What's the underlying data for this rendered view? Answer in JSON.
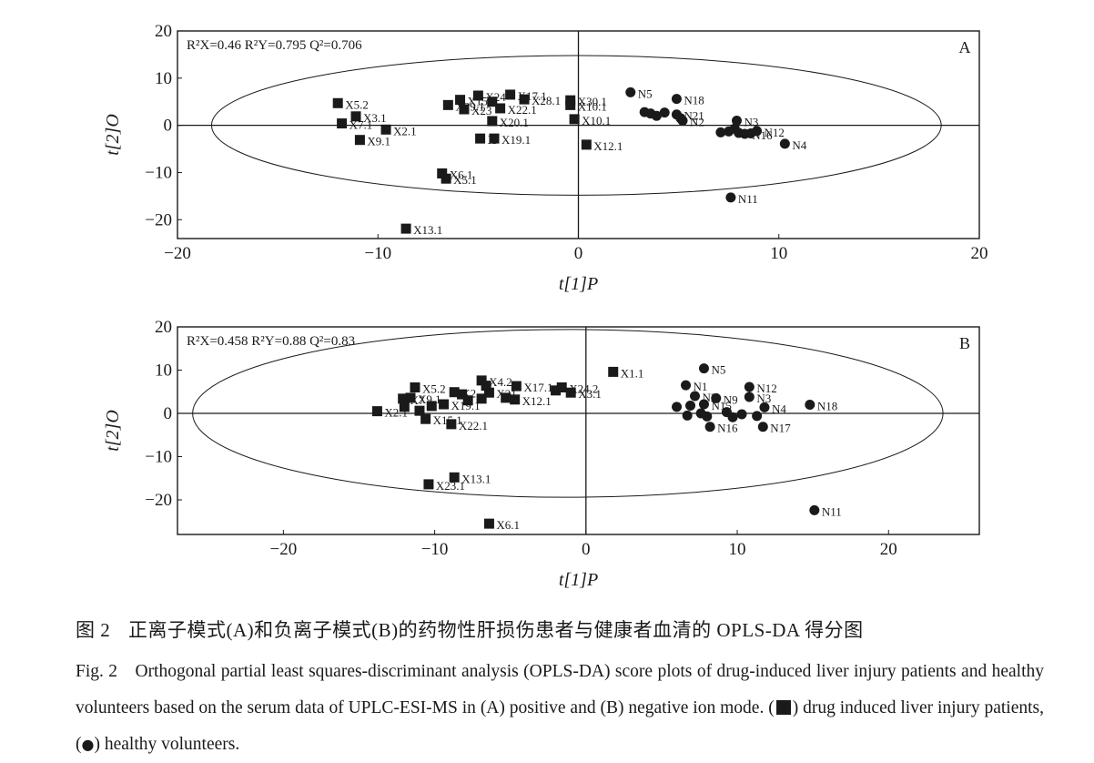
{
  "chart_data": [
    {
      "type": "scatter",
      "panel_letter": "A",
      "stats": "R²X=0.46 R²Y=0.795 Q²=0.706",
      "xlabel": "t[1]P",
      "ylabel": "t[2]O",
      "xlim": [
        -20,
        20
      ],
      "ylim": [
        -24,
        20
      ],
      "xticks": [
        -20,
        -10,
        0,
        10,
        20
      ],
      "yticks": [
        -20,
        -10,
        0,
        10,
        20
      ],
      "ellipse": {
        "center": [
          -0.1,
          0
        ],
        "rx": 18.2,
        "ry": 14.8
      },
      "series": [
        {
          "marker": "square",
          "points": [
            {
              "x": -12.0,
              "y": 4.7,
              "label": "X5.2"
            },
            {
              "x": -11.1,
              "y": 1.9,
              "label": "X3.1"
            },
            {
              "x": -11.8,
              "y": 0.4,
              "label": "X7.1"
            },
            {
              "x": -9.6,
              "y": -0.9,
              "label": "X2.1"
            },
            {
              "x": -10.9,
              "y": -3.1,
              "label": "X9.1"
            },
            {
              "x": -6.5,
              "y": 4.3,
              "label": "X29.1"
            },
            {
              "x": -5.9,
              "y": 5.4,
              "label": "X15"
            },
            {
              "x": -5.0,
              "y": 6.3,
              "label": "X24"
            },
            {
              "x": -5.7,
              "y": 3.4,
              "label": "X23"
            },
            {
              "x": -3.4,
              "y": 6.5,
              "label": "X17.1"
            },
            {
              "x": -2.7,
              "y": 5.5,
              "label": "X28.1"
            },
            {
              "x": -3.9,
              "y": 3.6,
              "label": "X22.1"
            },
            {
              "x": -4.3,
              "y": 0.9,
              "label": "X20.1"
            },
            {
              "x": -4.9,
              "y": -2.8,
              "label": "X"
            },
            {
              "x": -4.2,
              "y": -2.8,
              "label": "X19.1"
            },
            {
              "x": -0.4,
              "y": 5.3,
              "label": "X30.1"
            },
            {
              "x": -0.4,
              "y": 4.3,
              "label": "X10.1"
            },
            {
              "x": -0.2,
              "y": 1.3,
              "label": "X10.1"
            },
            {
              "x": 0.4,
              "y": -4.1,
              "label": "X12.1"
            },
            {
              "x": -6.8,
              "y": -10.2,
              "label": "X6.1"
            },
            {
              "x": -6.6,
              "y": -11.3,
              "label": "X5.1"
            },
            {
              "x": -8.6,
              "y": -21.9,
              "label": "X13.1"
            },
            {
              "x": -4.3,
              "y": 5.0,
              "label": ""
            }
          ]
        },
        {
          "marker": "circle",
          "points": [
            {
              "x": 2.6,
              "y": 7.0,
              "label": "N5"
            },
            {
              "x": 4.9,
              "y": 5.6,
              "label": "N18"
            },
            {
              "x": 4.9,
              "y": 2.3,
              "label": "N21"
            },
            {
              "x": 5.2,
              "y": 1.0,
              "label": "N2"
            },
            {
              "x": 7.9,
              "y": 1.0,
              "label": "N3"
            },
            {
              "x": 8.9,
              "y": -1.2,
              "label": "N12"
            },
            {
              "x": 8.3,
              "y": -1.8,
              "label": "N16"
            },
            {
              "x": 10.3,
              "y": -3.9,
              "label": "N4"
            },
            {
              "x": 7.6,
              "y": -15.3,
              "label": "N11"
            },
            {
              "x": 3.3,
              "y": 2.8,
              "label": ""
            },
            {
              "x": 3.6,
              "y": 2.5,
              "label": ""
            },
            {
              "x": 3.9,
              "y": 2.0,
              "label": ""
            },
            {
              "x": 4.3,
              "y": 2.7,
              "label": ""
            },
            {
              "x": 5.1,
              "y": 1.5,
              "label": ""
            },
            {
              "x": 7.1,
              "y": -1.5,
              "label": ""
            },
            {
              "x": 7.5,
              "y": -1.3,
              "label": ""
            },
            {
              "x": 7.8,
              "y": -0.7,
              "label": ""
            },
            {
              "x": 8.0,
              "y": -1.6,
              "label": ""
            },
            {
              "x": 8.6,
              "y": -1.7,
              "label": ""
            }
          ]
        }
      ]
    },
    {
      "type": "scatter",
      "panel_letter": "B",
      "stats": "R²X=0.458 R²Y=0.88 Q²=0.83",
      "xlabel": "t[1]P",
      "ylabel": "t[2]O",
      "xlim": [
        -27,
        26
      ],
      "ylim": [
        -28,
        20
      ],
      "xticks": [
        -20,
        -10,
        0,
        10,
        20
      ],
      "yticks": [
        -20,
        -10,
        0,
        10,
        20
      ],
      "ellipse": {
        "center": [
          -1.2,
          0
        ],
        "rx": 24.8,
        "ry": 19.4
      },
      "series": [
        {
          "marker": "square",
          "points": [
            {
              "x": -11.3,
              "y": 6.0,
              "label": "X5.2"
            },
            {
              "x": -11.6,
              "y": 3.6,
              "label": "X9.1"
            },
            {
              "x": -12.1,
              "y": 3.4,
              "label": "X7"
            },
            {
              "x": -13.8,
              "y": 0.5,
              "label": "X2.1"
            },
            {
              "x": -9.4,
              "y": 2.1,
              "label": "X19.1"
            },
            {
              "x": -10.6,
              "y": -1.3,
              "label": "X15.1"
            },
            {
              "x": -8.9,
              "y": -2.5,
              "label": "X22.1"
            },
            {
              "x": -8.7,
              "y": 4.9,
              "label": "X2"
            },
            {
              "x": -6.9,
              "y": 7.6,
              "label": "X4.2"
            },
            {
              "x": -6.4,
              "y": 4.8,
              "label": "X21"
            },
            {
              "x": -4.6,
              "y": 6.3,
              "label": "X17.1"
            },
            {
              "x": -4.7,
              "y": 3.2,
              "label": "X12.1"
            },
            {
              "x": -1.6,
              "y": 6.0,
              "label": "X24.2"
            },
            {
              "x": -1.0,
              "y": 4.8,
              "label": "X3.1"
            },
            {
              "x": 1.8,
              "y": 9.6,
              "label": "X1.1"
            },
            {
              "x": -8.7,
              "y": -14.8,
              "label": "X13.1"
            },
            {
              "x": -10.4,
              "y": -16.4,
              "label": "X23.1"
            },
            {
              "x": -6.4,
              "y": -25.5,
              "label": "X6.1"
            },
            {
              "x": -12.0,
              "y": 1.5,
              "label": ""
            },
            {
              "x": -11.0,
              "y": 0.6,
              "label": ""
            },
            {
              "x": -10.2,
              "y": 1.7,
              "label": ""
            },
            {
              "x": -8.2,
              "y": 4.4,
              "label": ""
            },
            {
              "x": -7.8,
              "y": 3.0,
              "label": ""
            },
            {
              "x": -6.9,
              "y": 3.4,
              "label": ""
            },
            {
              "x": -6.6,
              "y": 6.4,
              "label": ""
            },
            {
              "x": -5.3,
              "y": 3.6,
              "label": ""
            },
            {
              "x": -2.0,
              "y": 5.3,
              "label": ""
            }
          ]
        },
        {
          "marker": "circle",
          "points": [
            {
              "x": 7.8,
              "y": 10.4,
              "label": "N5"
            },
            {
              "x": 6.6,
              "y": 6.5,
              "label": "N1"
            },
            {
              "x": 7.2,
              "y": 4.0,
              "label": "N2"
            },
            {
              "x": 8.6,
              "y": 3.5,
              "label": "N9"
            },
            {
              "x": 10.8,
              "y": 6.1,
              "label": "N12"
            },
            {
              "x": 10.8,
              "y": 3.8,
              "label": "N3"
            },
            {
              "x": 11.8,
              "y": 1.4,
              "label": "N4"
            },
            {
              "x": 14.8,
              "y": 2.0,
              "label": "N18"
            },
            {
              "x": 7.8,
              "y": 2.1,
              "label": "N15"
            },
            {
              "x": 8.2,
              "y": -3.1,
              "label": "N16"
            },
            {
              "x": 11.7,
              "y": -3.1,
              "label": "N17"
            },
            {
              "x": 15.1,
              "y": -22.4,
              "label": "N11"
            },
            {
              "x": 6.0,
              "y": 1.5,
              "label": ""
            },
            {
              "x": 6.7,
              "y": -0.5,
              "label": ""
            },
            {
              "x": 6.9,
              "y": 1.8,
              "label": ""
            },
            {
              "x": 7.6,
              "y": 0.0,
              "label": ""
            },
            {
              "x": 8.0,
              "y": -0.7,
              "label": ""
            },
            {
              "x": 9.3,
              "y": 0.3,
              "label": ""
            },
            {
              "x": 9.7,
              "y": -0.9,
              "label": ""
            },
            {
              "x": 10.3,
              "y": -0.2,
              "label": ""
            },
            {
              "x": 11.3,
              "y": -0.6,
              "label": ""
            }
          ]
        }
      ]
    }
  ],
  "caption": {
    "cn_number": "图 2",
    "cn_text": "正离子模式(A)和负离子模式(B)的药物性肝损伤患者与健康者血清的 OPLS-DA 得分图",
    "en_number": "Fig. 2",
    "en_text": "Orthogonal partial least squares-discriminant analysis (OPLS-DA) score plots of drug-induced liver injury patients and healthy volunteers based on the serum data of UPLC-ESI-MS in (A) positive and (B) negative ion mode.",
    "en_sq_open": "(",
    "en_sq_text": ") drug induced liver injury patients,",
    "en_ci_open": "(",
    "en_ci_text": ") healthy volunteers."
  }
}
